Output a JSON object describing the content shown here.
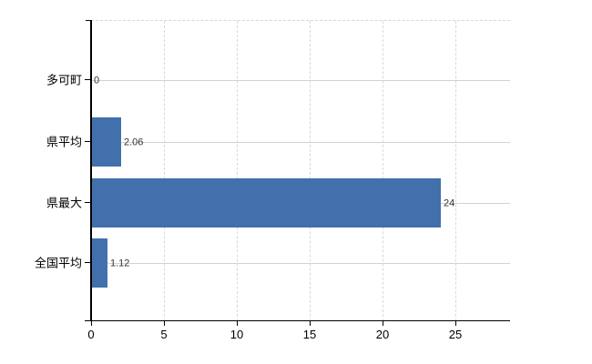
{
  "chart_data": {
    "type": "bar",
    "orientation": "horizontal",
    "title": "",
    "categories": [
      "多可町",
      "県平均",
      "県最大",
      "全国平均"
    ],
    "values": [
      0,
      2.06,
      24,
      1.12
    ],
    "value_labels": [
      "0",
      "2.06",
      "24",
      "1.12"
    ],
    "x_tick_labels": [
      "0",
      "5",
      "10",
      "15",
      "20",
      "25"
    ],
    "x_tick_values": [
      0,
      5,
      10,
      15,
      20,
      25
    ],
    "xlim": [
      0,
      28.75
    ],
    "grid": "on",
    "legend": "none",
    "colors": {
      "bar": "#4170ac",
      "grid_vertical": "#d9d9d9",
      "grid_horizontal": "#cdd6cd",
      "axis": "#000000",
      "value_label_text": "#333333",
      "tick_label_text": "#000000"
    }
  }
}
